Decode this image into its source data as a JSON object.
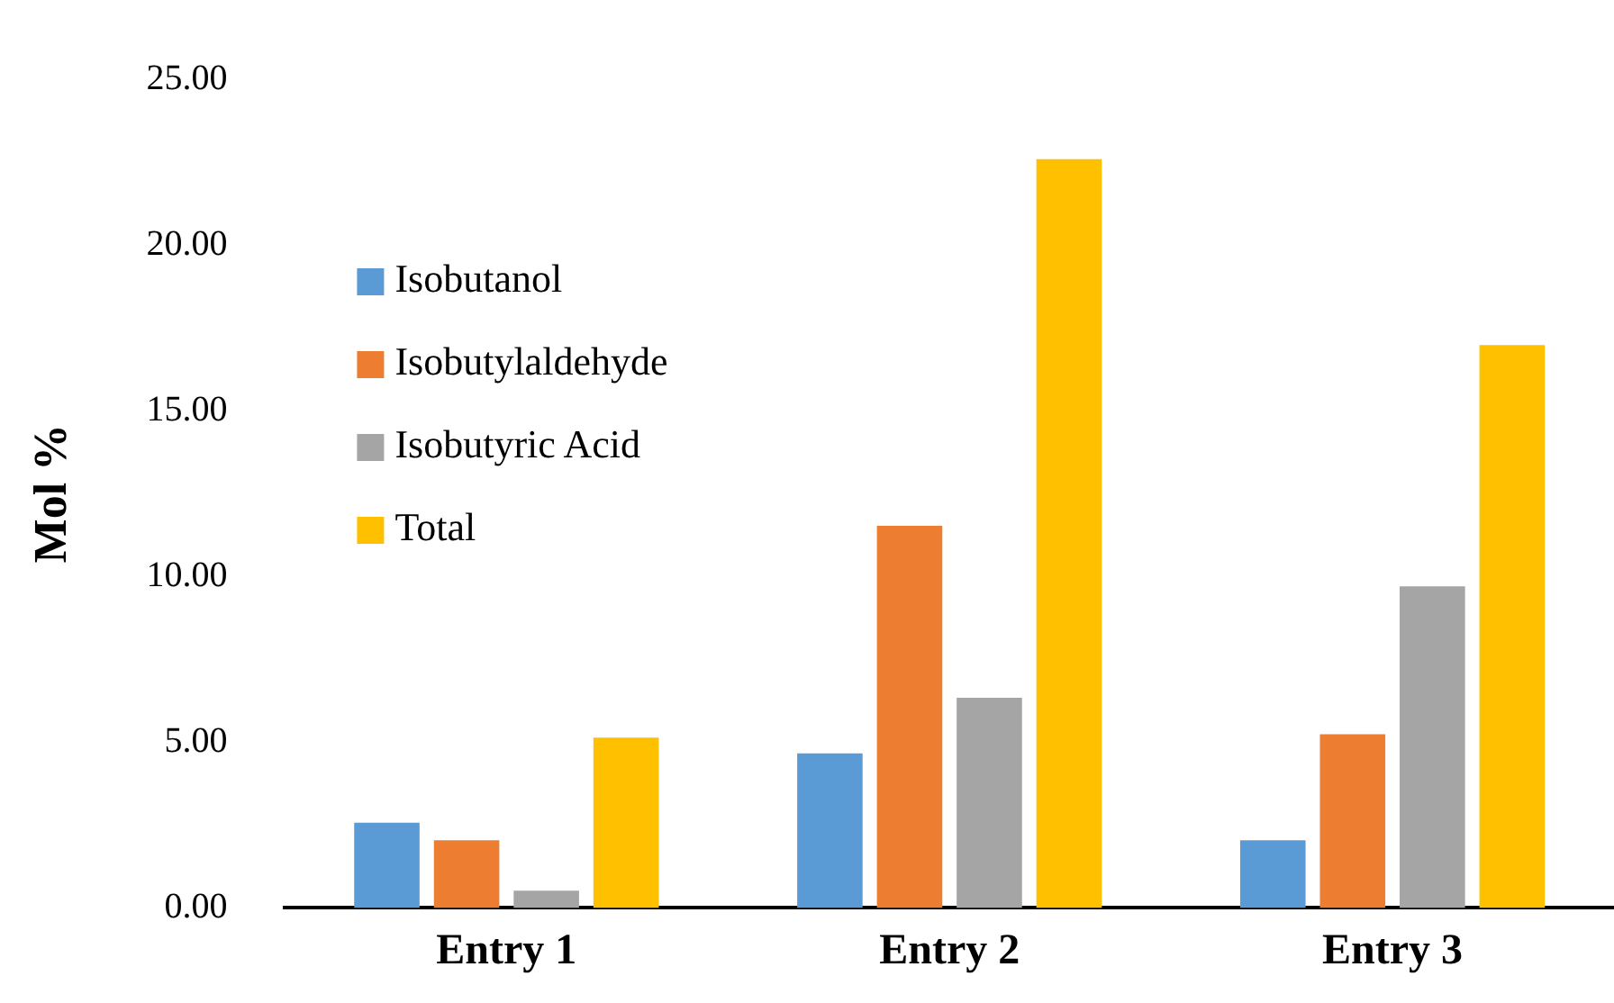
{
  "chart_data": {
    "type": "bar",
    "ylabel": "Mol %",
    "categories": [
      "Entry 1",
      "Entry 2",
      "Entry 3"
    ],
    "series": [
      {
        "name": "Isobutanol",
        "color": "#5b9bd5",
        "values": [
          2.57,
          4.66,
          2.04
        ]
      },
      {
        "name": "Isobutylaldehyde",
        "color": "#ed7d31",
        "values": [
          2.04,
          11.53,
          5.24
        ]
      },
      {
        "name": "Isobutyric Acid",
        "color": "#a5a5a5",
        "values": [
          0.52,
          6.34,
          9.7
        ]
      },
      {
        "name": "Total",
        "color": "#ffc000",
        "values": [
          5.14,
          22.59,
          16.98
        ]
      }
    ],
    "ylim": [
      0,
      25
    ],
    "yticks": [
      {
        "value": 0,
        "label": "0.00"
      },
      {
        "value": 5,
        "label": "5.00"
      },
      {
        "value": 10,
        "label": "10.00"
      },
      {
        "value": 15,
        "label": "15.00"
      },
      {
        "value": 20,
        "label": "20.00"
      },
      {
        "value": 25,
        "label": "25.00"
      }
    ],
    "grid": false,
    "legend": "top left"
  }
}
